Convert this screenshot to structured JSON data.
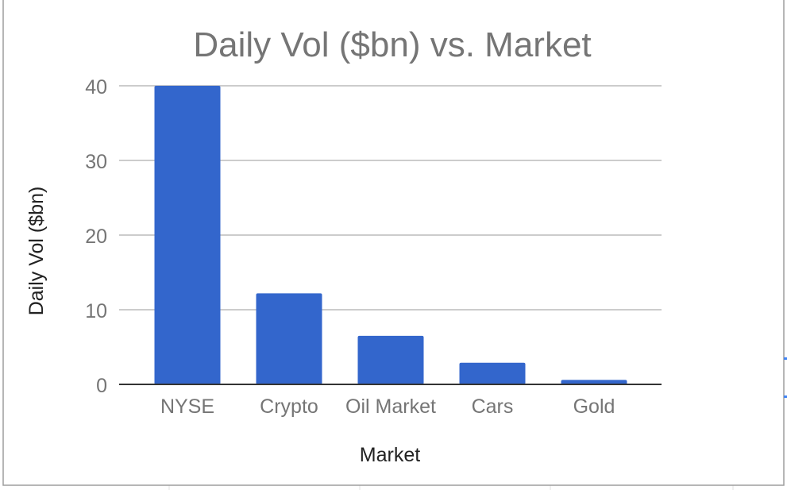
{
  "chart_data": {
    "type": "bar",
    "title": "Daily Vol ($bn) vs. Market",
    "xlabel": "Market",
    "ylabel": "Daily Vol ($bn)",
    "categories": [
      "NYSE",
      "Crypto",
      "Oil Market",
      "Cars",
      "Gold"
    ],
    "values": [
      40,
      12.2,
      6.5,
      2.9,
      0.6
    ],
    "ylim": [
      0,
      40
    ],
    "yticks": [
      "0",
      "10",
      "20",
      "30",
      "40"
    ],
    "grid": true,
    "legend": "none",
    "bar_color": "#3366cc"
  }
}
